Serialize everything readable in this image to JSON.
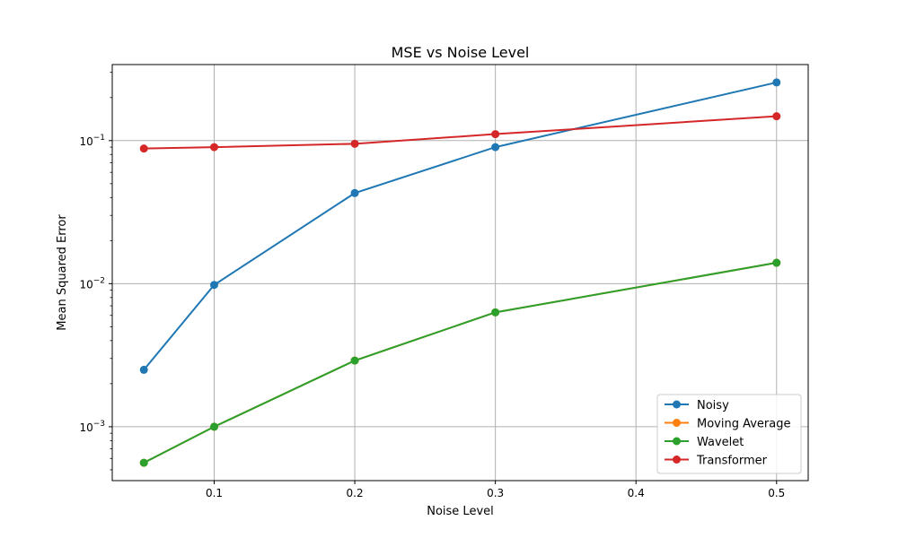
{
  "chart_data": {
    "type": "line",
    "title": "MSE vs Noise Level",
    "xlabel": "Noise Level",
    "ylabel": "Mean Squared Error",
    "x": [
      0.05,
      0.1,
      0.2,
      0.3,
      0.5
    ],
    "xlim": [
      0.0275,
      0.5225
    ],
    "ylim": [
      0.00042,
      0.34
    ],
    "yscale": "log",
    "grid": true,
    "legend_position": "lower-right",
    "x_ticks": [
      0.1,
      0.2,
      0.3,
      0.4,
      0.5
    ],
    "x_tick_labels": [
      "0.1",
      "0.2",
      "0.3",
      "0.4",
      "0.5"
    ],
    "y_ticks": [
      0.001,
      0.01,
      0.1
    ],
    "y_tick_labels": [
      {
        "base": "10",
        "exp": "−3"
      },
      {
        "base": "10",
        "exp": "−2"
      },
      {
        "base": "10",
        "exp": "−1"
      }
    ],
    "series": [
      {
        "name": "Noisy",
        "color": "#1f77b4",
        "values": [
          0.0025,
          0.0098,
          0.043,
          0.09,
          0.255
        ]
      },
      {
        "name": "Moving Average",
        "color": "#ff7f0e",
        "values": [
          0.00056,
          0.001,
          0.0029,
          0.0063,
          0.014
        ]
      },
      {
        "name": "Wavelet",
        "color": "#2ca02c",
        "values": [
          0.00056,
          0.001,
          0.0029,
          0.0063,
          0.014
        ]
      },
      {
        "name": "Transformer",
        "color": "#d62728",
        "values": [
          0.088,
          0.09,
          0.095,
          0.111,
          0.148
        ]
      }
    ]
  }
}
